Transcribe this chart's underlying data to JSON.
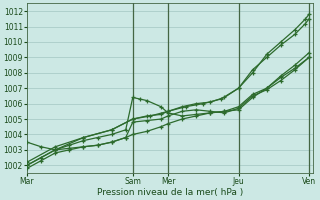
{
  "background_color": "#cce8e4",
  "plot_bg_color": "#cce8e4",
  "grid_color": "#aaccc8",
  "line_color": "#2d6b2d",
  "marker_color": "#2d6b2d",
  "xlabel": "Pression niveau de la mer( hPa )",
  "xlabel_color": "#1a4a1a",
  "tick_color": "#1a4a1a",
  "ylim": [
    1001.5,
    1012.5
  ],
  "yticks": [
    1002,
    1003,
    1004,
    1005,
    1006,
    1007,
    1008,
    1009,
    1010,
    1011,
    1012
  ],
  "xlim": [
    0,
    8.1
  ],
  "day_labels": [
    "Mar",
    "Sam",
    "Mer",
    "Jeu",
    "Ven"
  ],
  "day_positions": [
    0,
    3.0,
    4.0,
    6.0,
    8.0
  ],
  "vline_positions": [
    3.0,
    4.0,
    6.0,
    8.0
  ],
  "vline_color": "#446644",
  "series": [
    {
      "x": [
        0.0,
        0.4,
        0.8,
        1.2,
        1.6,
        2.0,
        2.4,
        2.8,
        3.0,
        3.4,
        3.8,
        4.0,
        4.4,
        4.8,
        5.2,
        5.6,
        6.0,
        6.4,
        6.8,
        7.2,
        7.6,
        8.0
      ],
      "y": [
        1001.8,
        1002.3,
        1002.8,
        1003.0,
        1003.2,
        1003.3,
        1003.5,
        1003.8,
        1004.0,
        1004.2,
        1004.5,
        1004.7,
        1005.0,
        1005.2,
        1005.4,
        1005.5,
        1005.6,
        1006.4,
        1007.0,
        1007.8,
        1008.5,
        1009.3
      ]
    },
    {
      "x": [
        0.0,
        0.4,
        0.8,
        1.2,
        1.6,
        2.0,
        2.4,
        2.8,
        3.0,
        3.2,
        3.4,
        3.8,
        4.0,
        4.4,
        4.8,
        5.2,
        5.6,
        6.0,
        6.4,
        6.8,
        7.2,
        7.6,
        8.0
      ],
      "y": [
        1002.0,
        1002.5,
        1003.0,
        1003.3,
        1003.6,
        1003.8,
        1004.0,
        1004.3,
        1006.4,
        1006.3,
        1006.2,
        1005.8,
        1005.4,
        1005.2,
        1005.3,
        1005.4,
        1005.5,
        1005.8,
        1006.6,
        1007.0,
        1007.7,
        1008.3,
        1009.0
      ]
    },
    {
      "x": [
        0.0,
        0.4,
        0.8,
        1.2,
        1.6,
        2.0,
        2.4,
        2.8,
        3.0,
        3.4,
        3.8,
        4.0,
        4.4,
        4.8,
        5.2,
        5.6,
        6.0,
        6.4,
        6.8,
        7.2,
        7.6,
        8.0
      ],
      "y": [
        1003.5,
        1003.2,
        1003.0,
        1003.1,
        1003.2,
        1003.3,
        1003.5,
        1003.8,
        1004.8,
        1004.9,
        1005.0,
        1005.2,
        1005.5,
        1005.6,
        1005.5,
        1005.4,
        1005.7,
        1006.5,
        1006.9,
        1007.5,
        1008.2,
        1009.0
      ]
    },
    {
      "x": [
        0.0,
        0.8,
        1.6,
        2.4,
        3.0,
        3.4,
        3.8,
        4.0,
        4.4,
        4.8,
        5.2,
        5.6,
        6.0,
        6.4,
        6.8,
        7.2,
        7.6,
        7.9,
        8.0
      ],
      "y": [
        1002.2,
        1003.2,
        1003.8,
        1004.3,
        1005.0,
        1005.2,
        1005.3,
        1005.5,
        1005.8,
        1006.0,
        1006.1,
        1006.4,
        1007.0,
        1008.2,
        1009.0,
        1009.8,
        1010.5,
        1011.2,
        1011.5
      ]
    },
    {
      "x": [
        0.0,
        0.8,
        1.6,
        2.4,
        3.0,
        3.5,
        4.0,
        4.5,
        5.0,
        5.5,
        6.0,
        6.4,
        6.8,
        7.2,
        7.6,
        7.9,
        8.0
      ],
      "y": [
        1002.0,
        1003.0,
        1003.8,
        1004.3,
        1005.0,
        1005.2,
        1005.5,
        1005.8,
        1006.0,
        1006.3,
        1007.0,
        1008.0,
        1009.2,
        1010.0,
        1010.8,
        1011.5,
        1011.8
      ]
    }
  ]
}
